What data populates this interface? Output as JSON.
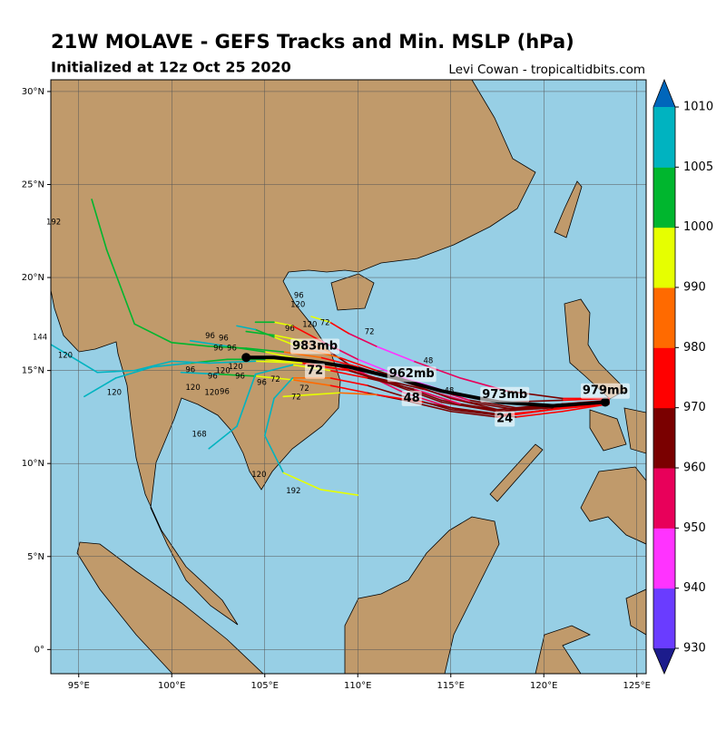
{
  "chart_data": {
    "type": "track_map",
    "title": "21W MOLAVE - GEFS Tracks and Min. MSLP (hPa)",
    "subtitle": "Initialized at 12z Oct 25 2020",
    "credit": "Levi Cowan - tropicaltidbits.com",
    "xlim": [
      93.5,
      125.5
    ],
    "ylim": [
      -1.3,
      30.63
    ],
    "xticks": [
      {
        "value": 95,
        "label": "95°E"
      },
      {
        "value": 100,
        "label": "100°E"
      },
      {
        "value": 105,
        "label": "105°E"
      },
      {
        "value": 110,
        "label": "110°E"
      },
      {
        "value": 115,
        "label": "115°E"
      },
      {
        "value": 120,
        "label": "120°E"
      },
      {
        "value": 125,
        "label": "125°E"
      }
    ],
    "yticks": [
      {
        "value": 0,
        "label": "0°"
      },
      {
        "value": 5,
        "label": "5°N"
      },
      {
        "value": 10,
        "label": "10°N"
      },
      {
        "value": 15,
        "label": "15°N"
      },
      {
        "value": 20,
        "label": "20°N"
      },
      {
        "value": 25,
        "label": "25°N"
      },
      {
        "value": 30,
        "label": "30°N"
      }
    ],
    "grid": true,
    "colorbar": {
      "levels": [
        930,
        940,
        950,
        960,
        970,
        980,
        990,
        1000,
        1005,
        1010
      ],
      "colors": [
        "#6a3cff",
        "#ff33ff",
        "#e8005a",
        "#7a0000",
        "#ff0000",
        "#ff6a00",
        "#e6ff00",
        "#00b62e",
        "#00b3c0"
      ],
      "under_color": "#1c1c8c",
      "over_color": "#0066bb"
    },
    "tracks": [
      {
        "lon": [
          123.5,
          121,
          118.5,
          116,
          113.5,
          111,
          109,
          107,
          105,
          103,
          101
        ],
        "lat": [
          13.4,
          13.1,
          12.9,
          13.3,
          14,
          14.6,
          15.2,
          15.6,
          16,
          16.3,
          16.6
        ],
        "mslp": [
          982,
          972,
          966,
          962,
          958,
          962,
          975,
          985,
          995,
          1002,
          1006
        ]
      },
      {
        "lon": [
          123.5,
          121,
          118,
          115,
          112.5,
          110,
          108.5,
          107,
          105.5,
          104
        ],
        "lat": [
          13.3,
          13,
          12.6,
          13,
          13.8,
          15,
          16,
          16.6,
          16.9,
          17.1
        ],
        "mslp": [
          984,
          975,
          968,
          960,
          955,
          952,
          965,
          980,
          992,
          1000
        ]
      },
      {
        "lon": [
          123.5,
          120.5,
          117.5,
          115,
          112.5,
          110.5,
          108.5,
          106.5,
          104.5,
          102.5,
          100.5
        ],
        "lat": [
          13.2,
          12.9,
          12.5,
          12.8,
          13.4,
          13.8,
          14.2,
          14.5,
          14.7,
          14.8,
          14.9
        ],
        "mslp": [
          985,
          976,
          970,
          966,
          962,
          960,
          970,
          985,
          997,
          1003,
          1007
        ]
      },
      {
        "lon": [
          123.5,
          121,
          118,
          115.5,
          113,
          111,
          109.5,
          108.5,
          107.5
        ],
        "lat": [
          13.5,
          13.5,
          13.9,
          14.6,
          15.5,
          16.3,
          17,
          17.6,
          17.9
        ],
        "mslp": [
          983,
          974,
          966,
          958,
          950,
          948,
          958,
          975,
          990
        ]
      },
      {
        "lon": [
          123.5,
          121,
          118.5,
          116,
          113.5,
          111,
          109,
          107,
          105.5,
          104.5,
          103.5
        ],
        "lat": [
          13.3,
          13.2,
          13,
          13.4,
          14.2,
          15,
          15.7,
          16.2,
          16.8,
          17.2,
          17.4
        ],
        "mslp": [
          985,
          974,
          967,
          962,
          958,
          960,
          972,
          985,
          996,
          1003,
          1007
        ]
      },
      {
        "lon": [
          123.5,
          120.5,
          117.5,
          114.5,
          112,
          109.5,
          107,
          105,
          103,
          101,
          99,
          97,
          95.3
        ],
        "lat": [
          13.3,
          13,
          12.8,
          13.4,
          14.3,
          15,
          15.4,
          15.6,
          15.6,
          15.4,
          15.2,
          14.6,
          13.6
        ],
        "mslp": [
          984,
          975,
          969,
          964,
          960,
          962,
          976,
          990,
          1000,
          1004,
          1006,
          1007,
          1008
        ]
      },
      {
        "lon": [
          123.5,
          120.5,
          117.5,
          115,
          112.5,
          110,
          108,
          106,
          104,
          102,
          100,
          98,
          96.5,
          95.7
        ],
        "lat": [
          13.3,
          13.1,
          12.9,
          13.5,
          14.4,
          15.2,
          15.7,
          16,
          16.2,
          16.3,
          16.5,
          17.5,
          21.5,
          24.2
        ],
        "mslp": [
          984,
          975,
          968,
          963,
          960,
          963,
          975,
          988,
          1001,
          1002,
          1004,
          1003,
          1002,
          1001
        ]
      },
      {
        "lon": [
          123.5,
          120.5,
          117.5,
          115,
          112.5,
          110.5,
          108.5,
          106.5,
          105.5,
          105,
          106,
          108,
          110
        ],
        "lat": [
          13.3,
          12.9,
          12.6,
          12.9,
          13.6,
          14.2,
          14.6,
          14.6,
          13.5,
          11.5,
          9.5,
          8.6,
          8.3
        ],
        "mslp": [
          986,
          977,
          971,
          967,
          963,
          962,
          972,
          986,
          1006,
          1007,
          1006,
          995,
          993
        ]
      },
      {
        "lon": [
          123.5,
          121,
          118,
          115.5,
          113,
          110.5,
          108.5,
          106.5,
          104.5,
          103.5,
          102
        ],
        "lat": [
          13.4,
          13.2,
          12.8,
          13.2,
          14,
          14.6,
          15,
          15.3,
          14.8,
          12,
          10.8
        ],
        "mslp": [
          983,
          973,
          967,
          962,
          958,
          961,
          974,
          990,
          1006,
          1007,
          1008
        ]
      },
      {
        "lon": [
          123.5,
          121,
          118.5,
          116,
          113.5,
          111,
          109,
          107.5,
          106
        ],
        "lat": [
          13.2,
          12.8,
          12.5,
          12.8,
          13.3,
          13.7,
          13.8,
          13.7,
          13.6
        ],
        "mslp": [
          986,
          978,
          972,
          968,
          966,
          972,
          984,
          992,
          995
        ]
      },
      {
        "lon": [
          123.5,
          120.5,
          117.5,
          114.5,
          112,
          109.5,
          107,
          104.5,
          102,
          100,
          98,
          96,
          94.5,
          93.5
        ],
        "lat": [
          13.3,
          13.1,
          12.8,
          13.3,
          14.2,
          15,
          15.4,
          15.5,
          15.4,
          15.5,
          15,
          14.9,
          15.8,
          16.4
        ],
        "mslp": [
          984,
          975,
          968,
          963,
          960,
          963,
          976,
          992,
          1006,
          1007,
          1007,
          1008,
          1008,
          1008
        ]
      },
      {
        "lon": [
          123.5,
          121,
          118,
          115,
          112.5,
          110,
          108,
          106.5,
          105.5,
          104.5
        ],
        "lat": [
          13.5,
          13.4,
          13.3,
          13.8,
          14.6,
          15.6,
          16.6,
          17.4,
          17.6,
          17.6
        ],
        "mslp": [
          982,
          970,
          962,
          954,
          946,
          944,
          956,
          975,
          990,
          1001
        ]
      }
    ],
    "mean_track": {
      "lon": [
        123.3,
        120.5,
        117.6,
        114.5,
        112,
        109.5,
        107.5,
        105.5,
        104
      ],
      "lat": [
        13.3,
        13.1,
        13.3,
        13.9,
        14.6,
        15.2,
        15.5,
        15.7,
        15.7
      ]
    },
    "mean_labels": [
      {
        "text": "979mb",
        "lon": 123.3,
        "lat": 13.9
      },
      {
        "text": "973mb",
        "lon": 117.9,
        "lat": 13.7
      },
      {
        "text": "962mb",
        "lon": 112.9,
        "lat": 14.8
      },
      {
        "text": "983mb",
        "lon": 107.7,
        "lat": 16.3
      },
      {
        "text": "24",
        "lon": 117.9,
        "lat": 12.4
      },
      {
        "text": "48",
        "lon": 112.9,
        "lat": 13.5
      },
      {
        "text": "72",
        "lon": 107.7,
        "lat": 14.97
      }
    ],
    "hour_labels": [
      {
        "text": "96",
        "lon": 106.83,
        "lat": 19.02
      },
      {
        "text": "120",
        "lon": 106.78,
        "lat": 18.53
      },
      {
        "text": "120",
        "lon": 107.42,
        "lat": 17.46
      },
      {
        "text": "72",
        "lon": 108.24,
        "lat": 17.56
      },
      {
        "text": "72",
        "lon": 110.63,
        "lat": 17.07
      },
      {
        "text": "96",
        "lon": 106.35,
        "lat": 17.26
      },
      {
        "text": "48",
        "lon": 113.79,
        "lat": 15.51
      },
      {
        "text": "48",
        "lon": 114.91,
        "lat": 13.9
      },
      {
        "text": "96",
        "lon": 102.06,
        "lat": 16.87
      },
      {
        "text": "96",
        "lon": 102.79,
        "lat": 16.73
      },
      {
        "text": "96",
        "lon": 102.5,
        "lat": 16.19
      },
      {
        "text": "96",
        "lon": 103.23,
        "lat": 16.19
      },
      {
        "text": "120",
        "lon": 103.43,
        "lat": 15.2
      },
      {
        "text": "96",
        "lon": 101.0,
        "lat": 15.02
      },
      {
        "text": "96",
        "lon": 102.2,
        "lat": 14.68
      },
      {
        "text": "120",
        "lon": 102.75,
        "lat": 14.97
      },
      {
        "text": "96",
        "lon": 103.67,
        "lat": 14.68
      },
      {
        "text": "120",
        "lon": 101.14,
        "lat": 14.09
      },
      {
        "text": "120",
        "lon": 102.16,
        "lat": 13.8
      },
      {
        "text": "96",
        "lon": 102.84,
        "lat": 13.85
      },
      {
        "text": "72",
        "lon": 107.13,
        "lat": 14.04
      },
      {
        "text": "72",
        "lon": 106.69,
        "lat": 13.56
      },
      {
        "text": "96",
        "lon": 104.84,
        "lat": 14.34
      },
      {
        "text": "72",
        "lon": 105.57,
        "lat": 14.53
      },
      {
        "text": "120",
        "lon": 94.28,
        "lat": 15.8
      },
      {
        "text": "120",
        "lon": 96.91,
        "lat": 13.8
      },
      {
        "text": "144",
        "lon": 92.92,
        "lat": 16.78
      },
      {
        "text": "192",
        "lon": 93.65,
        "lat": 22.97
      },
      {
        "text": "168",
        "lon": 101.48,
        "lat": 11.56
      },
      {
        "text": "120",
        "lon": 104.69,
        "lat": 9.41
      },
      {
        "text": "192",
        "lon": 106.54,
        "lat": 8.53
      }
    ]
  }
}
